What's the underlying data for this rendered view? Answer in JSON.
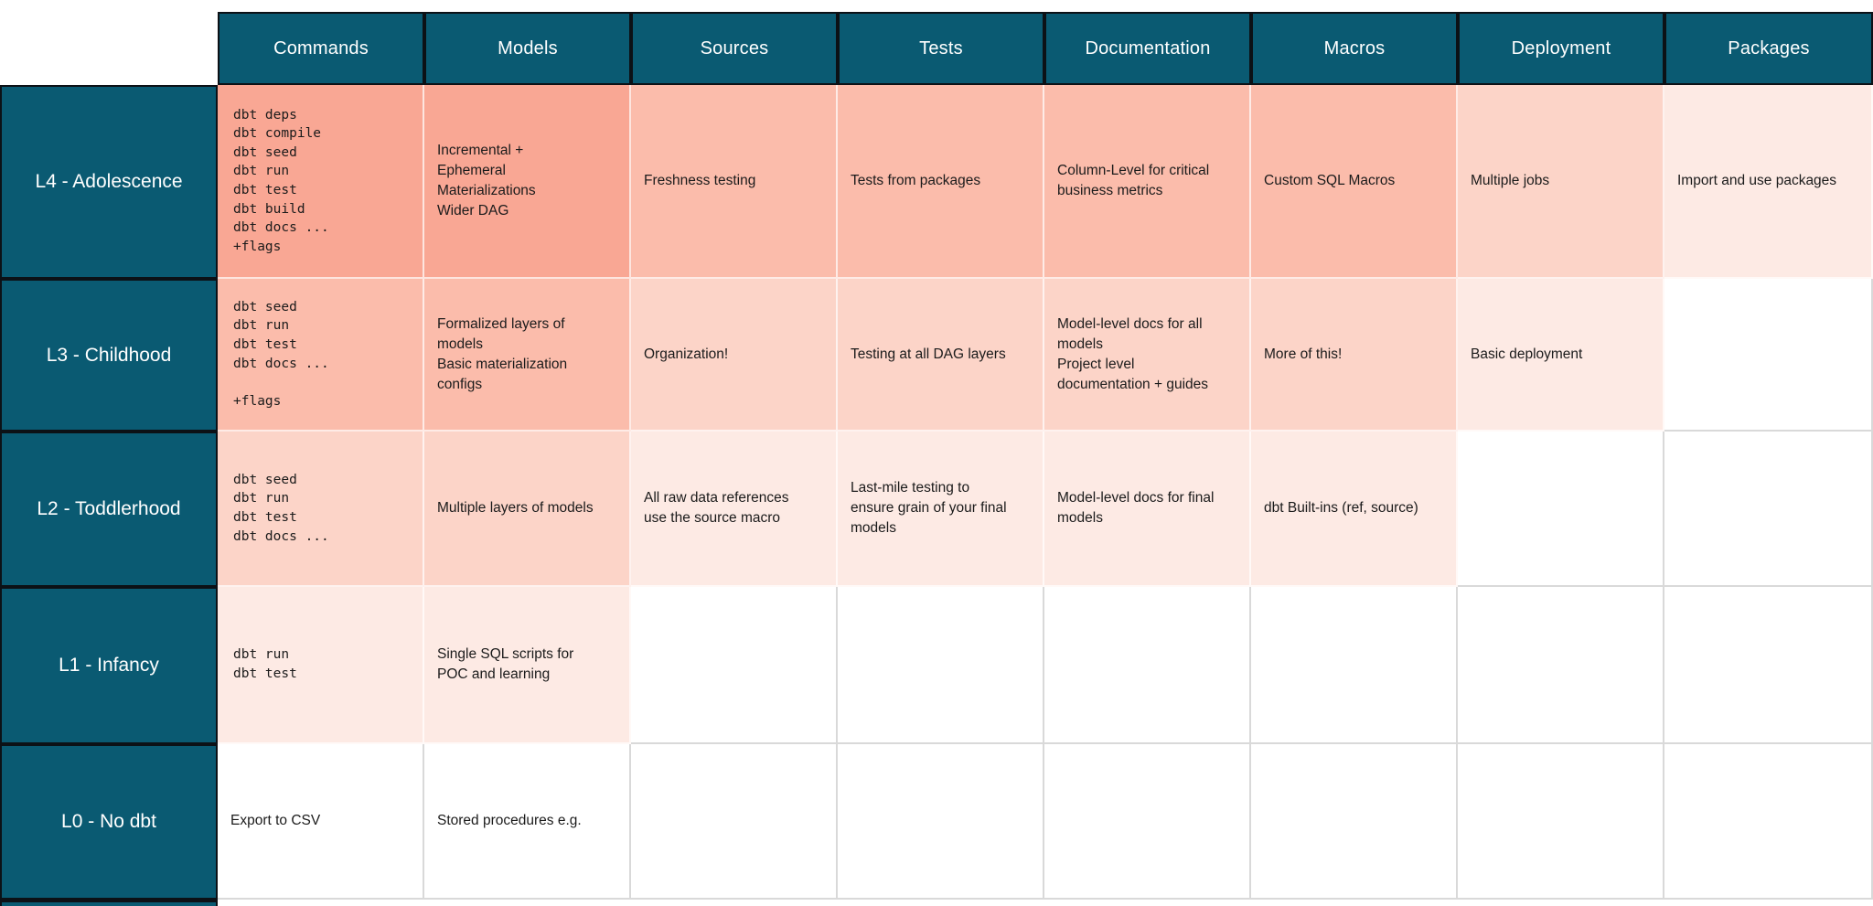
{
  "colors": {
    "header_teal": "#0a5a72",
    "border_dark": "#0c1116",
    "grid_line": "#d9d9d9",
    "shade_1": "#f9a794",
    "shade_2": "#fbbcab",
    "shade_3": "#fcd4c8",
    "shade_4": "#fdeae4",
    "cell_text": "#1b1b1b"
  },
  "table": {
    "column_headers": [
      "Commands",
      "Models",
      "Sources",
      "Tests",
      "Documentation",
      "Macros",
      "Deployment",
      "Packages"
    ],
    "rows": [
      {
        "label": "L4 - Adolescence",
        "cells": [
          "dbt deps\ndbt compile\ndbt seed\ndbt run\ndbt test\ndbt build\ndbt docs ...\n+flags",
          "Incremental +\nEphemeral\nMaterializations\nWider DAG",
          "Freshness testing",
          "Tests from packages",
          "Column-Level for critical\nbusiness metrics",
          "Custom SQL Macros",
          "Multiple jobs",
          "Import and use packages"
        ]
      },
      {
        "label": "L3 - Childhood",
        "cells": [
          "dbt seed\ndbt run\ndbt test\ndbt docs ...\n\n+flags",
          "Formalized layers of\nmodels\nBasic materialization\nconfigs",
          "Organization!",
          "Testing at all DAG layers",
          "Model-level docs for all\nmodels\nProject level\ndocumentation + guides",
          "More of this!",
          "Basic deployment",
          ""
        ]
      },
      {
        "label": "L2 - Toddlerhood",
        "cells": [
          "dbt seed\ndbt run\ndbt test\ndbt docs ...",
          "Multiple layers of models",
          "All raw data references\nuse the source macro",
          "Last-mile testing to\nensure grain of your final\nmodels",
          "Model-level docs for final\nmodels",
          "dbt Built-ins (ref, source)",
          "",
          ""
        ]
      },
      {
        "label": "L1 - Infancy",
        "cells": [
          "dbt run\ndbt test",
          "Single SQL scripts for\nPOC and learning",
          "",
          "",
          "",
          "",
          "",
          ""
        ]
      },
      {
        "label": "L0 - No dbt",
        "cells": [
          "Export to CSV",
          "Stored procedures e.g.",
          "",
          "",
          "",
          "",
          "",
          ""
        ]
      }
    ]
  }
}
